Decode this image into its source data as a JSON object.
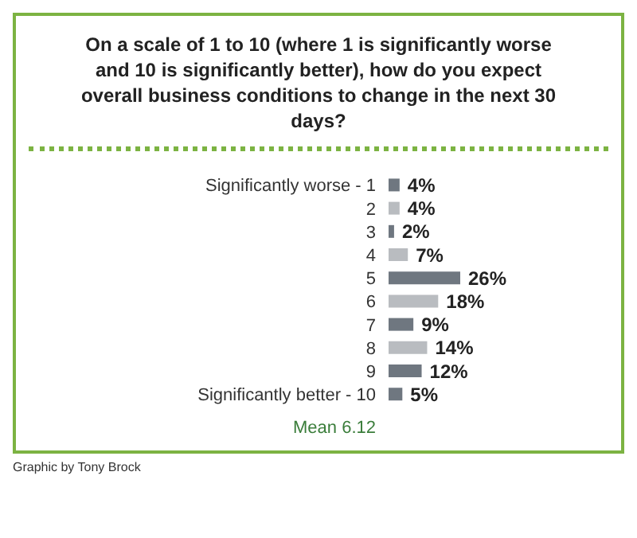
{
  "chart_data": {
    "type": "bar",
    "orientation": "horizontal",
    "title": "On a scale of 1 to 10 (where 1 is significantly worse and 10 is significantly better), how do you expect overall business conditions to change in the next 30 days?",
    "categories": [
      "Significantly worse - 1",
      "2",
      "3",
      "4",
      "5",
      "6",
      "7",
      "8",
      "9",
      "Significantly better - 10"
    ],
    "values": [
      4,
      4,
      2,
      7,
      26,
      18,
      9,
      14,
      12,
      5
    ],
    "value_labels": [
      "4%",
      "4%",
      "2%",
      "7%",
      "26%",
      "18%",
      "9%",
      "14%",
      "12%",
      "5%"
    ],
    "colors": [
      "#6f7780",
      "#b9bcc0",
      "#6f7780",
      "#b9bcc0",
      "#6f7780",
      "#b9bcc0",
      "#6f7780",
      "#b9bcc0",
      "#6f7780",
      "#6f7780"
    ],
    "annotations": [
      "Mean 6.12",
      "Graphic by Tony Brock"
    ]
  }
}
